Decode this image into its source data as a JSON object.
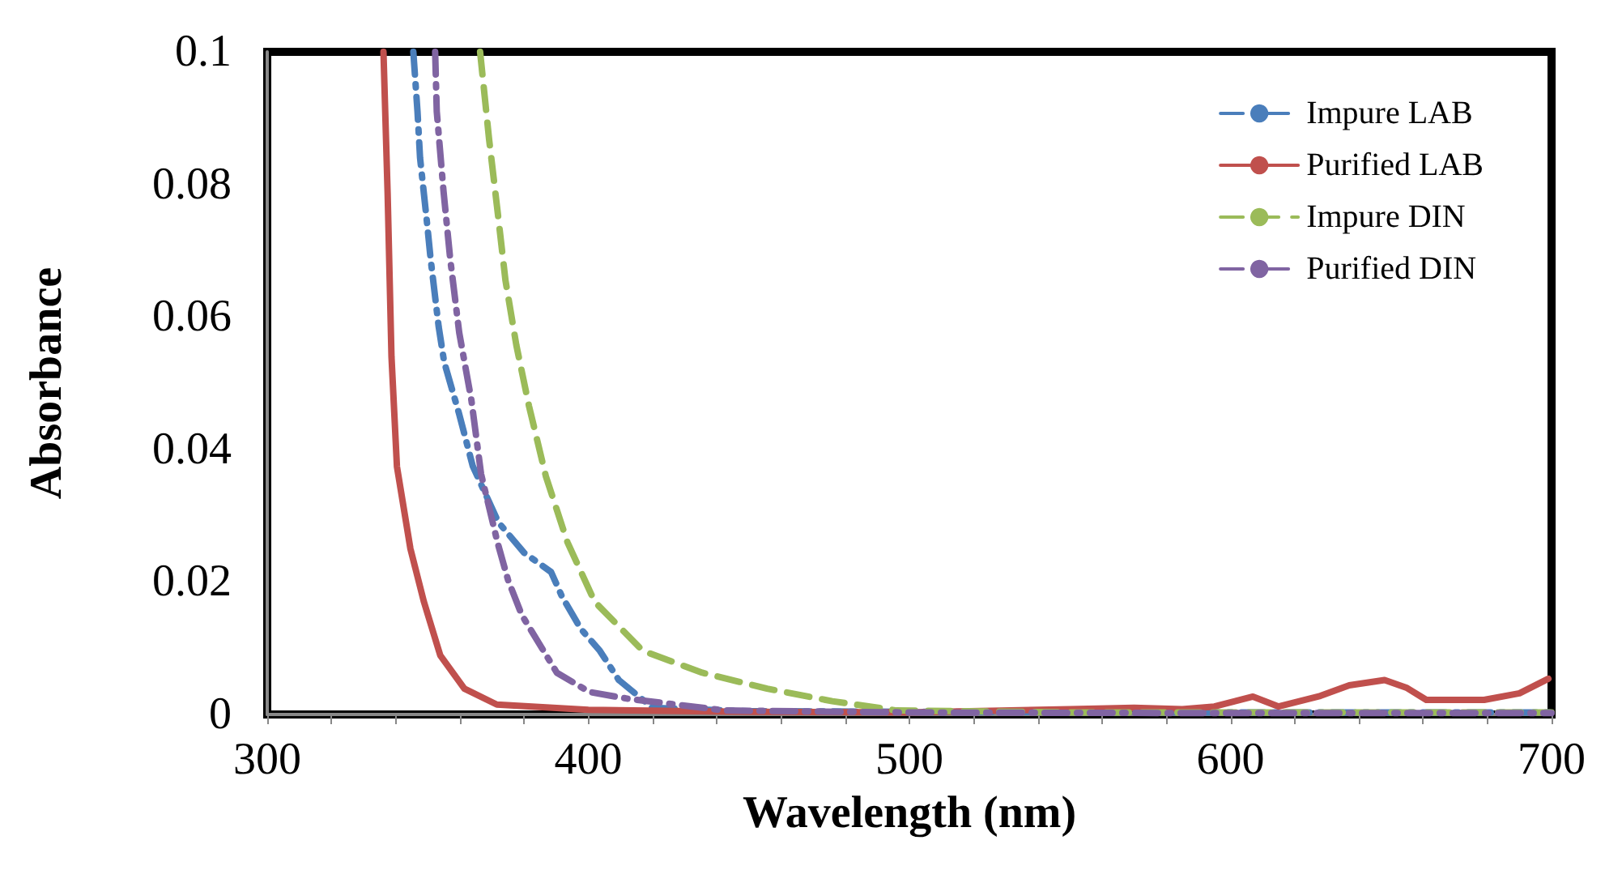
{
  "chart_data": {
    "type": "line",
    "xlabel": "Wavelength (nm)",
    "ylabel": "Absorbance",
    "xlim": [
      300,
      700
    ],
    "ylim": [
      0,
      0.1
    ],
    "xticks": [
      300,
      {
        "value": 320,
        "label": null
      },
      {
        "value": 340,
        "label": null
      },
      {
        "value": 360,
        "label": null
      },
      {
        "value": 380,
        "label": null
      },
      400,
      {
        "value": 420,
        "label": null
      },
      {
        "value": 440,
        "label": null
      },
      {
        "value": 460,
        "label": null
      },
      {
        "value": 480,
        "label": null
      },
      500,
      {
        "value": 520,
        "label": null
      },
      {
        "value": 540,
        "label": null
      },
      {
        "value": 560,
        "label": null
      },
      {
        "value": 580,
        "label": null
      },
      600,
      {
        "value": 620,
        "label": null
      },
      {
        "value": 640,
        "label": null
      },
      {
        "value": 660,
        "label": null
      },
      {
        "value": 680,
        "label": null
      },
      700
    ],
    "yticks": [
      0,
      0.02,
      0.04,
      0.06,
      0.08,
      0.1
    ],
    "grid": false,
    "legend": "top right",
    "marker": "none",
    "series": [
      {
        "name": "Impure LAB",
        "color": "#4a7ebb",
        "line_style": "dashdot",
        "x": [
          345.5,
          346.8,
          347.6,
          349.7,
          350.9,
          353.4,
          355.1,
          359.8,
          364,
          372,
          380,
          388.4,
          391.8,
          397.7,
          403.6,
          409.5,
          420,
          450,
          500,
          600,
          700
        ],
        "values": [
          0.1,
          0.091,
          0.084,
          0.0745,
          0.0687,
          0.0585,
          0.0532,
          0.0453,
          0.0375,
          0.029,
          0.0244,
          0.0215,
          0.0178,
          0.0129,
          0.0096,
          0.0052,
          0.001,
          0.0005,
          0.0004,
          0.0003,
          0.0003
        ]
      },
      {
        "name": "Purified LAB",
        "color": "#c0504d",
        "line_style": "solid",
        "x": [
          336.2,
          337.5,
          338.7,
          340.4,
          344.6,
          348.8,
          353.9,
          361.4,
          371.5,
          400,
          450,
          500,
          550,
          570,
          585,
          595,
          607,
          615,
          628,
          637,
          648,
          655,
          661,
          679,
          690,
          699
        ],
        "values": [
          0.1,
          0.0786,
          0.054,
          0.0374,
          0.025,
          0.017,
          0.0089,
          0.0039,
          0.0015,
          0.0007,
          0.0004,
          0.0003,
          0.0008,
          0.001,
          0.0008,
          0.0012,
          0.0027,
          0.0012,
          0.0028,
          0.0044,
          0.0052,
          0.004,
          0.0022,
          0.0022,
          0.0032,
          0.0054
        ]
      },
      {
        "name": "Impure DIN",
        "color": "#9bbb59",
        "line_style": "dashed",
        "x": [
          366.3,
          369.1,
          371.7,
          374.2,
          377.6,
          381.5,
          386.8,
          393.5,
          402,
          417,
          435.5,
          455.7,
          476,
          496,
          550,
          600,
          700
        ],
        "values": [
          0.1,
          0.0868,
          0.0761,
          0.0655,
          0.0557,
          0.0466,
          0.0359,
          0.026,
          0.017,
          0.0096,
          0.0063,
          0.0039,
          0.002,
          0.0006,
          0.0003,
          0.0003,
          0.0003
        ]
      },
      {
        "name": "Purified DIN",
        "color": "#8064a2",
        "line_style": "dashdot",
        "x": [
          352.3,
          352.8,
          354.9,
          357,
          359.8,
          363.6,
          366.6,
          371.7,
          375,
          379.3,
          390.2,
          400.3,
          412,
          442.5,
          500,
          600,
          700
        ],
        "values": [
          0.1,
          0.091,
          0.079,
          0.0687,
          0.0576,
          0.0474,
          0.0363,
          0.026,
          0.0203,
          0.015,
          0.0063,
          0.0034,
          0.0024,
          0.0006,
          0.0003,
          0.0002,
          0.0002
        ]
      }
    ]
  }
}
